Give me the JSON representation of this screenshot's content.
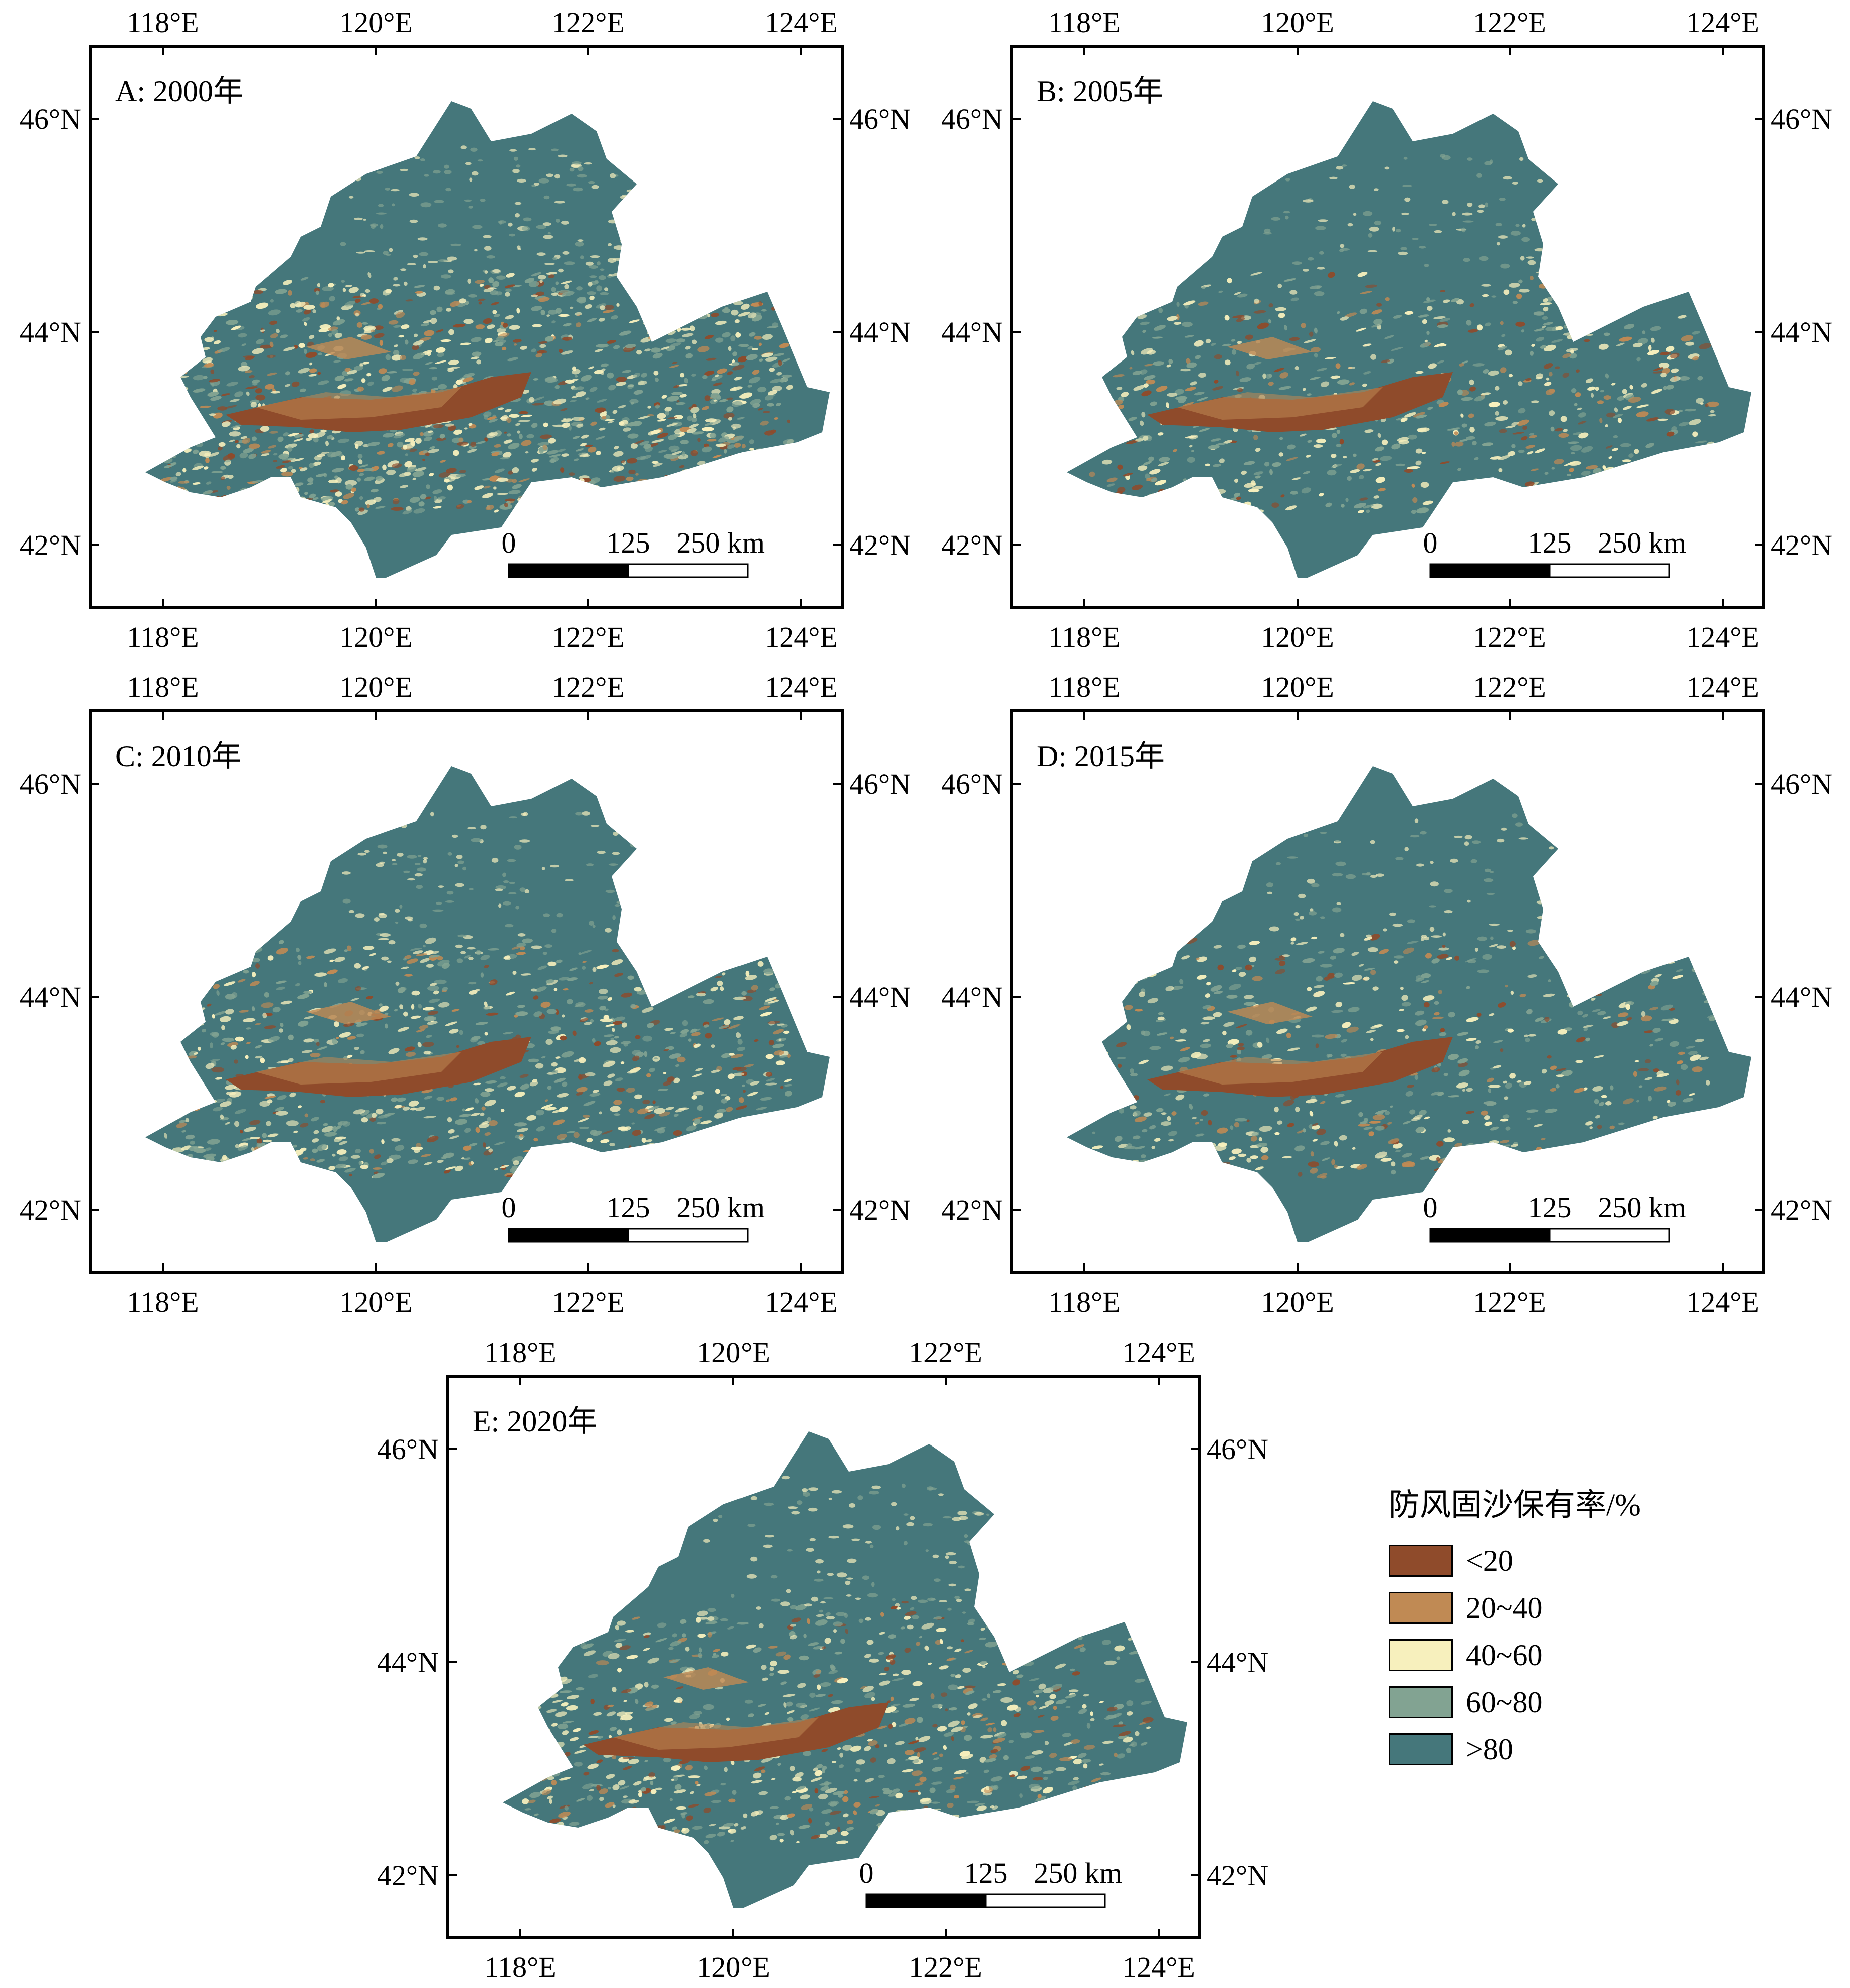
{
  "colors": {
    "lt20": "#8f4b2b",
    "c20_40": "#c08a54",
    "c40_60": "#f7f0bd",
    "c60_80": "#82a392",
    "gt80": "#45777b"
  },
  "axis": {
    "lon_ticks": [
      "118°E",
      "120°E",
      "122°E",
      "124°E"
    ],
    "lat_ticks": [
      "46°N",
      "44°N",
      "42°N"
    ]
  },
  "scale_bar": {
    "labels": [
      "0",
      "125",
      "250 km"
    ]
  },
  "panels": [
    {
      "id": "A",
      "title": "A: 2000年"
    },
    {
      "id": "B",
      "title": "B: 2005年"
    },
    {
      "id": "C",
      "title": "C: 2010年"
    },
    {
      "id": "D",
      "title": "D: 2015年"
    },
    {
      "id": "E",
      "title": "E: 2020年"
    }
  ],
  "legend": {
    "title": "防风固沙保有率/%",
    "items": [
      {
        "label": "<20",
        "color_key": "lt20"
      },
      {
        "label": "20~40",
        "color_key": "c20_40"
      },
      {
        "label": "40~60",
        "color_key": "c40_60"
      },
      {
        "label": "60~80",
        "color_key": "c60_80"
      },
      {
        "label": ">80",
        "color_key": "gt80"
      }
    ]
  }
}
